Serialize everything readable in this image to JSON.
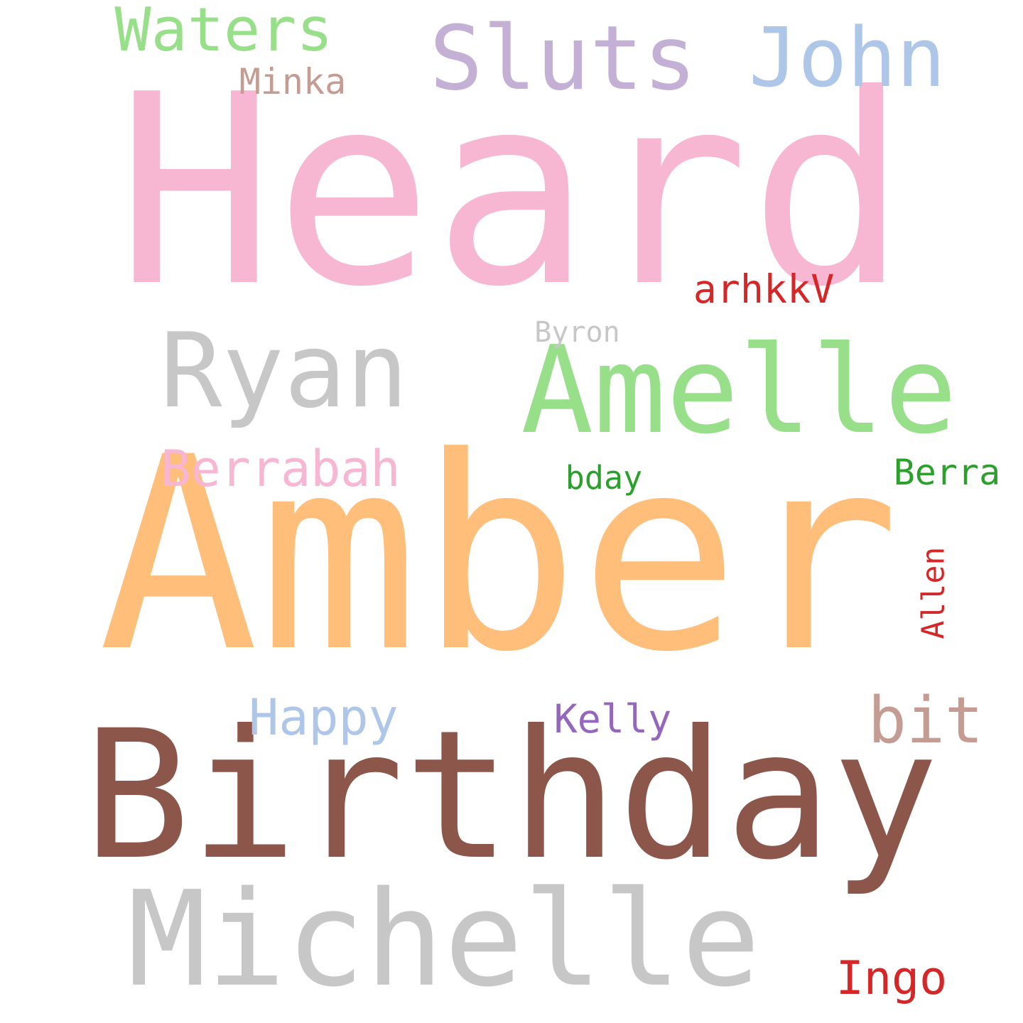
{
  "words": [
    {
      "text": "Heard",
      "color": "#f7b6d2"
    },
    {
      "text": "Amber",
      "color": "#ffbe7a"
    },
    {
      "text": "Birthday",
      "color": "#8c564b"
    },
    {
      "text": "Michelle",
      "color": "#c7c7c7"
    },
    {
      "text": "Amelle",
      "color": "#98df8a"
    },
    {
      "text": "Ryan",
      "color": "#c7c7c7"
    },
    {
      "text": "Sluts",
      "color": "#c5b0d5"
    },
    {
      "text": "John",
      "color": "#aec7e8"
    },
    {
      "text": "Waters",
      "color": "#98df8a"
    },
    {
      "text": "bit",
      "color": "#c49c94"
    },
    {
      "text": "Berrabah",
      "color": "#f7b6d2"
    },
    {
      "text": "Happy",
      "color": "#aec7e8"
    },
    {
      "text": "Ingo",
      "color": "#d62728"
    },
    {
      "text": "arhkkV",
      "color": "#d62728"
    },
    {
      "text": "Minka",
      "color": "#c49c94"
    },
    {
      "text": "Berra",
      "color": "#2ca02c"
    },
    {
      "text": "Kelly",
      "color": "#9467bd"
    },
    {
      "text": "bday",
      "color": "#2ca02c"
    },
    {
      "text": "Byron",
      "color": "#c7c7c7"
    },
    {
      "text": "Allen",
      "color": "#d62728"
    }
  ]
}
